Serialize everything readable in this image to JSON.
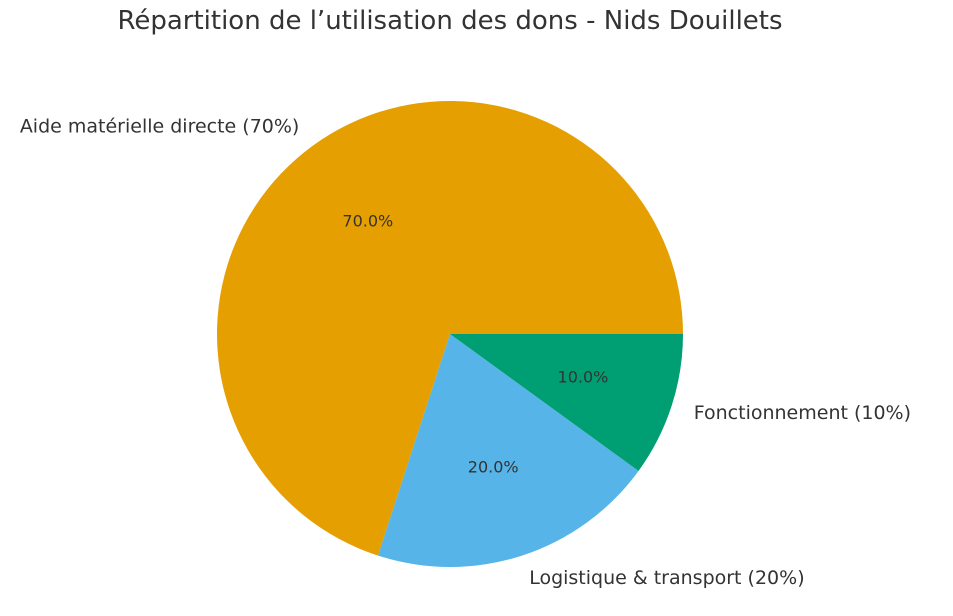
{
  "chart_data": {
    "type": "pie",
    "title": "Répartition de l’utilisation des dons - Nids Douillets",
    "slices": [
      {
        "label": "Aide matérielle directe (70%)",
        "value": 70,
        "pct_label": "70.0%",
        "color": "#E69F00"
      },
      {
        "label": "Logistique & transport (20%)",
        "value": 20,
        "pct_label": "20.0%",
        "color": "#56B4E9"
      },
      {
        "label": "Fonctionnement (10%)",
        "value": 10,
        "pct_label": "10.0%",
        "color": "#009E73"
      }
    ],
    "start_angle_deg": 0,
    "direction": "counterclockwise",
    "legend": "none"
  }
}
